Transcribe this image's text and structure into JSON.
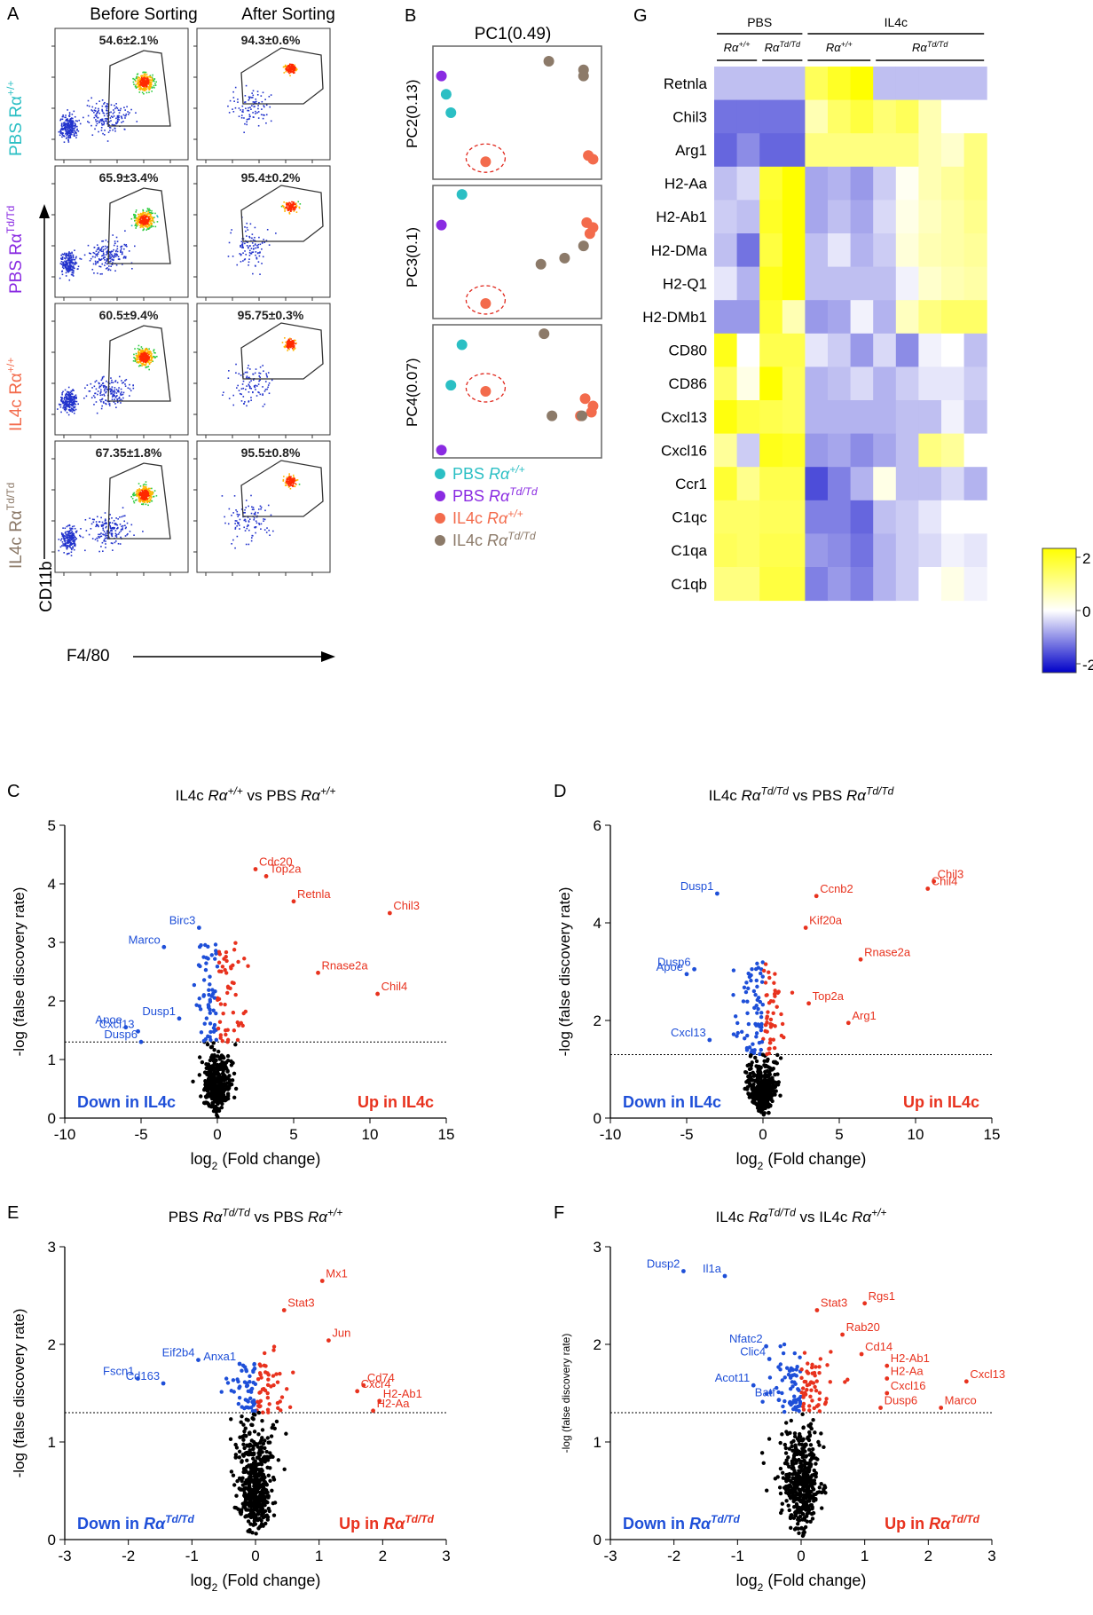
{
  "panel_labels": {
    "a": "A",
    "b": "B",
    "c": "C",
    "d": "D",
    "e": "E",
    "f": "F",
    "g": "G"
  },
  "colors": {
    "cyan": "#2bbfc4",
    "purple": "#8a2be2",
    "salmon": "#f36b4c",
    "taupe": "#8c7a69",
    "blue": "#1e4fd8",
    "red": "#e8321e"
  },
  "flow": {
    "col_before": "Before Sorting",
    "col_after": "After Sorting",
    "rows": [
      {
        "name": "PBS Rα",
        "sup": "+/+",
        "color_key": "cyan",
        "before": "54.6±2.1%",
        "after": "94.3±0.6%"
      },
      {
        "name": "PBS Rα",
        "sup": "Td/Td",
        "color_key": "purple",
        "before": "65.9±3.4%",
        "after": "95.4±0.2%"
      },
      {
        "name": "IL4c Rα",
        "sup": "+/+",
        "color_key": "salmon",
        "before": "60.5±9.4%",
        "after": "95.75±0.3%"
      },
      {
        "name": "IL4c Rα",
        "sup": "Td/Td",
        "color_key": "taupe",
        "before": "67.35±1.8%",
        "after": "95.5±0.8%"
      }
    ],
    "y_axis": "CD11b",
    "x_axis": "F4/80"
  },
  "pca": {
    "top_title": "PC1(0.49)",
    "panels": [
      {
        "axis": "PC2(0.13)",
        "points": {
          "cyan": [
            [
              0.05,
              0.65
            ],
            [
              0.08,
              0.5
            ]
          ],
          "purple": [
            [
              0.02,
              0.8
            ]
          ],
          "salmon": [
            [
              0.95,
              0.15
            ],
            [
              0.98,
              0.12
            ]
          ],
          "taupe": [
            [
              0.7,
              0.92
            ],
            [
              0.92,
              0.85
            ],
            [
              0.92,
              0.8
            ]
          ],
          "circled": [
            0.3,
            0.1
          ]
        }
      },
      {
        "axis": "PC3(0.1)",
        "points": {
          "cyan": [
            [
              0.15,
              0.97
            ]
          ],
          "purple": [
            [
              0.02,
              0.72
            ]
          ],
          "salmon": [
            [
              0.94,
              0.74
            ],
            [
              0.98,
              0.7
            ],
            [
              0.96,
              0.65
            ]
          ],
          "taupe": [
            [
              0.92,
              0.55
            ],
            [
              0.8,
              0.45
            ],
            [
              0.65,
              0.4
            ]
          ],
          "circled": [
            0.3,
            0.08
          ]
        }
      },
      {
        "axis": "PC4(0.07)",
        "points": {
          "cyan": [
            [
              0.15,
              0.88
            ],
            [
              0.08,
              0.55
            ]
          ],
          "purple": [
            [
              0.02,
              0.02
            ]
          ],
          "salmon": [
            [
              0.93,
              0.44
            ],
            [
              0.98,
              0.38
            ],
            [
              0.97,
              0.33
            ],
            [
              0.9,
              0.3
            ]
          ],
          "taupe": [
            [
              0.67,
              0.97
            ],
            [
              0.72,
              0.3
            ],
            [
              0.91,
              0.3
            ]
          ],
          "circled": [
            0.3,
            0.5
          ]
        }
      }
    ],
    "legend": [
      {
        "group": "PBS ",
        "geno": "Rα+/+",
        "color_key": "cyan"
      },
      {
        "group": "PBS ",
        "geno": "RαTd/Td",
        "color_key": "purple"
      },
      {
        "group": "IL4c ",
        "geno": "Rα+/+",
        "color_key": "salmon"
      },
      {
        "group": "IL4c ",
        "geno": "RαTd/Td",
        "color_key": "taupe"
      }
    ]
  },
  "heatmap": {
    "group_labels": [
      "PBS",
      "IL4c"
    ],
    "geno_labels": [
      "Rα+/+",
      "RαTd/Td",
      "Rα+/+",
      "RαTd/Td"
    ],
    "genes": [
      "Retnla",
      "Chil3",
      "Arg1",
      "H2-Aa",
      "H2-Ab1",
      "H2-DMa",
      "H2-Q1",
      "H2-DMb1",
      "CD80",
      "CD86",
      "Cxcl13",
      "Cxcl16",
      "Ccr1",
      "C1qc",
      "C1qa",
      "C1qb"
    ],
    "values": [
      [
        -0.5,
        -0.5,
        -0.5,
        -0.5,
        1.3,
        1.7,
        2.1,
        -0.5,
        -0.5,
        -0.5,
        -0.5,
        -0.5
      ],
      [
        -1.1,
        -1.1,
        -1.1,
        -1.1,
        0.6,
        1.2,
        1.5,
        1.1,
        1.3,
        0.6,
        0.0,
        0.0
      ],
      [
        -1.2,
        -0.9,
        -1.2,
        -1.2,
        1.0,
        1.0,
        1.0,
        1.0,
        1.0,
        0.6,
        0.4,
        1.0
      ],
      [
        -0.5,
        -0.3,
        1.6,
        2.1,
        -0.7,
        -0.6,
        -0.8,
        -0.4,
        0.1,
        0.6,
        0.8,
        1.0
      ],
      [
        -0.4,
        -0.5,
        1.7,
        2.0,
        -0.7,
        -0.5,
        -0.7,
        -0.3,
        0.2,
        0.5,
        0.7,
        0.9
      ],
      [
        -0.5,
        -1.1,
        1.5,
        2.0,
        -0.5,
        -0.2,
        -0.6,
        -0.4,
        0.3,
        0.6,
        0.7,
        0.8
      ],
      [
        -0.2,
        -0.6,
        1.8,
        2.0,
        -0.5,
        -0.5,
        -0.5,
        -0.5,
        -0.1,
        0.4,
        0.6,
        0.7
      ],
      [
        -0.8,
        -0.8,
        1.6,
        0.6,
        -0.8,
        -0.7,
        -0.1,
        -0.6,
        0.5,
        1.0,
        1.2,
        1.2
      ],
      [
        1.8,
        0.0,
        1.4,
        1.4,
        -0.2,
        -0.4,
        -0.8,
        -0.3,
        -0.9,
        -0.1,
        0.0,
        -0.5
      ],
      [
        1.2,
        0.2,
        2.0,
        1.3,
        -0.6,
        -0.5,
        -0.3,
        -0.6,
        -0.4,
        -0.2,
        -0.2,
        -0.4
      ],
      [
        1.9,
        1.5,
        1.4,
        1.3,
        -0.6,
        -0.6,
        -0.6,
        -0.6,
        -0.5,
        -0.5,
        -0.1,
        -0.5
      ],
      [
        0.8,
        -0.4,
        1.8,
        1.7,
        -0.8,
        -0.7,
        -0.9,
        -0.7,
        -0.5,
        1.0,
        0.8,
        0.0
      ],
      [
        1.6,
        0.9,
        1.4,
        1.4,
        -1.4,
        -1.0,
        -0.6,
        0.2,
        -0.5,
        -0.5,
        -0.3,
        -0.6
      ],
      [
        1.2,
        1.2,
        1.3,
        1.3,
        -1.0,
        -1.0,
        -1.2,
        -0.5,
        -0.4,
        -0.2,
        0.0,
        0.0
      ],
      [
        1.3,
        1.2,
        1.4,
        1.4,
        -0.8,
        -0.9,
        -1.1,
        -0.6,
        -0.4,
        -0.3,
        -0.1,
        -0.2
      ],
      [
        1.0,
        1.0,
        1.5,
        1.5,
        -1.0,
        -0.8,
        -1.0,
        -0.6,
        -0.4,
        0.0,
        0.2,
        -0.1
      ]
    ],
    "colorbar_ticks": [
      "2",
      "0",
      "-2"
    ]
  },
  "volcanoes": [
    {
      "key": "C",
      "title": "IL4c Rα+/+ vs PBS Rα+/+",
      "xlim": [
        -10,
        15
      ],
      "ylim": [
        0,
        5
      ],
      "xticks": [
        "-10",
        "-5",
        "0",
        "5",
        "10",
        "15"
      ],
      "yticks": [
        "0",
        "1",
        "2",
        "3",
        "4",
        "5"
      ],
      "xlabel": "log2 (Fold change)",
      "ylabel": "-log (false discovery rate)",
      "threshold": 1.3,
      "down_label": "Down in IL4c",
      "up_label": "Up in IL4c",
      "labels": [
        {
          "text": "Cdc20",
          "x": 2.5,
          "y": 4.25,
          "side": "up"
        },
        {
          "text": "Top2a",
          "x": 3.2,
          "y": 4.13,
          "side": "up"
        },
        {
          "text": "Retnla",
          "x": 5.0,
          "y": 3.7,
          "side": "up"
        },
        {
          "text": "Chil3",
          "x": 11.3,
          "y": 3.5,
          "side": "up"
        },
        {
          "text": "Rnase2a",
          "x": 6.6,
          "y": 2.48,
          "side": "up"
        },
        {
          "text": "Chil4",
          "x": 10.5,
          "y": 2.12,
          "side": "up"
        },
        {
          "text": "Birc3",
          "x": -1.2,
          "y": 3.25,
          "side": "down"
        },
        {
          "text": "Marco",
          "x": -3.5,
          "y": 2.92,
          "side": "down"
        },
        {
          "text": "Dusp1",
          "x": -2.5,
          "y": 1.7,
          "side": "down"
        },
        {
          "text": "Apoe",
          "x": -6.0,
          "y": 1.55,
          "side": "down"
        },
        {
          "text": "Cxcl13",
          "x": -5.2,
          "y": 1.48,
          "side": "down"
        },
        {
          "text": "Dusp6",
          "x": -5.0,
          "y": 1.3,
          "side": "down"
        }
      ]
    },
    {
      "key": "D",
      "title": "IL4c RαTd/Td vs PBS RαTd/Td",
      "xlim": [
        -10,
        15
      ],
      "ylim": [
        0,
        6
      ],
      "xticks": [
        "-10",
        "-5",
        "0",
        "5",
        "10",
        "15"
      ],
      "yticks": [
        "0",
        "2",
        "4",
        "6"
      ],
      "xlabel": "log2 (Fold change)",
      "ylabel": "-log (false discovery rate)",
      "threshold": 1.3,
      "down_label": "Down in IL4c",
      "up_label": "Up in IL4c",
      "labels": [
        {
          "text": "Chil3",
          "x": 11.2,
          "y": 4.85,
          "side": "up"
        },
        {
          "text": "Chil4",
          "x": 10.8,
          "y": 4.7,
          "side": "up"
        },
        {
          "text": "Ccnb2",
          "x": 3.5,
          "y": 4.55,
          "side": "up"
        },
        {
          "text": "Kif20a",
          "x": 2.8,
          "y": 3.9,
          "side": "up"
        },
        {
          "text": "Rnase2a",
          "x": 6.4,
          "y": 3.25,
          "side": "up"
        },
        {
          "text": "Top2a",
          "x": 3.0,
          "y": 2.35,
          "side": "up"
        },
        {
          "text": "Arg1",
          "x": 5.6,
          "y": 1.95,
          "side": "up"
        },
        {
          "text": "Dusp1",
          "x": -3.0,
          "y": 4.6,
          "side": "down"
        },
        {
          "text": "Dusp6",
          "x": -4.5,
          "y": 3.05,
          "side": "down"
        },
        {
          "text": "Apoe",
          "x": -5.0,
          "y": 2.95,
          "side": "down"
        },
        {
          "text": "Cxcl13",
          "x": -3.5,
          "y": 1.6,
          "side": "down"
        }
      ]
    },
    {
      "key": "E",
      "title": "PBS RαTd/Td vs PBS Rα+/+",
      "xlim": [
        -3,
        3
      ],
      "ylim": [
        0,
        3
      ],
      "xticks": [
        "-3",
        "-2",
        "-1",
        "0",
        "1",
        "2",
        "3"
      ],
      "yticks": [
        "0",
        "1",
        "2",
        "3"
      ],
      "xlabel": "log2 (Fold change)",
      "ylabel": "-log (false discovery rate)",
      "threshold": 1.3,
      "down_label": "Down in RαTd/Td",
      "up_label": "Up in RαTd/Td",
      "labels": [
        {
          "text": "Mx1",
          "x": 1.05,
          "y": 2.65,
          "side": "up"
        },
        {
          "text": "Stat3",
          "x": 0.45,
          "y": 2.35,
          "side": "up"
        },
        {
          "text": "Jun",
          "x": 1.15,
          "y": 2.04,
          "side": "up"
        },
        {
          "text": "Cd74",
          "x": 1.7,
          "y": 1.58,
          "side": "up"
        },
        {
          "text": "Cxcr4",
          "x": 1.6,
          "y": 1.52,
          "side": "up"
        },
        {
          "text": "H2-Ab1",
          "x": 1.95,
          "y": 1.42,
          "side": "up"
        },
        {
          "text": "H2-Aa",
          "x": 1.85,
          "y": 1.32,
          "side": "up"
        },
        {
          "text": "Eif2b4",
          "x": -0.9,
          "y": 1.84,
          "side": "down"
        },
        {
          "text": "Anxa1",
          "x": -0.25,
          "y": 1.8,
          "side": "down"
        },
        {
          "text": "Fscn1",
          "x": -1.85,
          "y": 1.65,
          "side": "down"
        },
        {
          "text": "Cd163",
          "x": -1.45,
          "y": 1.6,
          "side": "down"
        }
      ]
    },
    {
      "key": "F",
      "title": "IL4c RαTd/Td vs IL4c Rα+/+",
      "xlim": [
        -3,
        3
      ],
      "ylim": [
        0,
        3
      ],
      "xticks": [
        "-3",
        "-2",
        "-1",
        "0",
        "1",
        "2",
        "3"
      ],
      "yticks": [
        "0",
        "1",
        "2",
        "3"
      ],
      "xlabel": "log2 (Fold change)",
      "ylabel": "-log (false discovery rate)",
      "threshold": 1.3,
      "down_label": "Down in RαTd/Td",
      "up_label": "Up in RαTd/Td",
      "labels": [
        {
          "text": "Dusp2",
          "x": -1.85,
          "y": 2.75,
          "side": "down"
        },
        {
          "text": "Il1a",
          "x": -1.2,
          "y": 2.7,
          "side": "down"
        },
        {
          "text": "Nfatc2",
          "x": -0.55,
          "y": 1.98,
          "side": "down"
        },
        {
          "text": "Clic4",
          "x": -0.5,
          "y": 1.85,
          "side": "down"
        },
        {
          "text": "Acot11",
          "x": -0.75,
          "y": 1.58,
          "side": "down"
        },
        {
          "text": "Batf",
          "x": -0.35,
          "y": 1.43,
          "side": "down"
        },
        {
          "text": "Rgs1",
          "x": 1.0,
          "y": 2.42,
          "side": "up"
        },
        {
          "text": "Stat3",
          "x": 0.25,
          "y": 2.35,
          "side": "up"
        },
        {
          "text": "Rab20",
          "x": 0.65,
          "y": 2.1,
          "side": "up"
        },
        {
          "text": "Cd14",
          "x": 0.95,
          "y": 1.9,
          "side": "up"
        },
        {
          "text": "H2-Ab1",
          "x": 1.35,
          "y": 1.78,
          "side": "up"
        },
        {
          "text": "H2-Aa",
          "x": 1.35,
          "y": 1.65,
          "side": "up"
        },
        {
          "text": "Cxcl13",
          "x": 2.6,
          "y": 1.62,
          "side": "up"
        },
        {
          "text": "Cxcl16",
          "x": 1.35,
          "y": 1.5,
          "side": "up"
        },
        {
          "text": "Dusp6",
          "x": 1.25,
          "y": 1.35,
          "side": "up"
        },
        {
          "text": "Marco",
          "x": 2.2,
          "y": 1.35,
          "side": "up"
        }
      ]
    }
  ]
}
